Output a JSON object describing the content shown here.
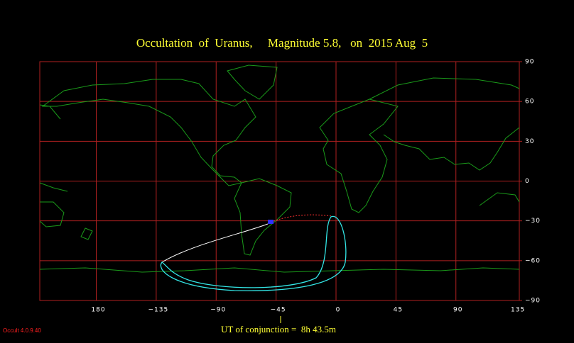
{
  "title": "Occultation  of  Uranus,     Magnitude 5.8,   on  2015 Aug  5",
  "longitude_ticks": [
    180,
    {
      "value": -135,
      "label": "−135"
    },
    {
      "value": -90,
      "label": "−90"
    },
    {
      "value": -45,
      "label": "−45"
    },
    0,
    45,
    90,
    135
  ],
  "latitude_ticks": [
    90,
    60,
    30,
    0,
    {
      "value": -30,
      "label": "−30"
    },
    {
      "value": -60,
      "label": "−60"
    },
    {
      "value": -90,
      "label": "−90"
    }
  ],
  "conjunction_label": "UT of conjunction =  8h 43.5m",
  "version": "Occult 4.0.9.40"
}
